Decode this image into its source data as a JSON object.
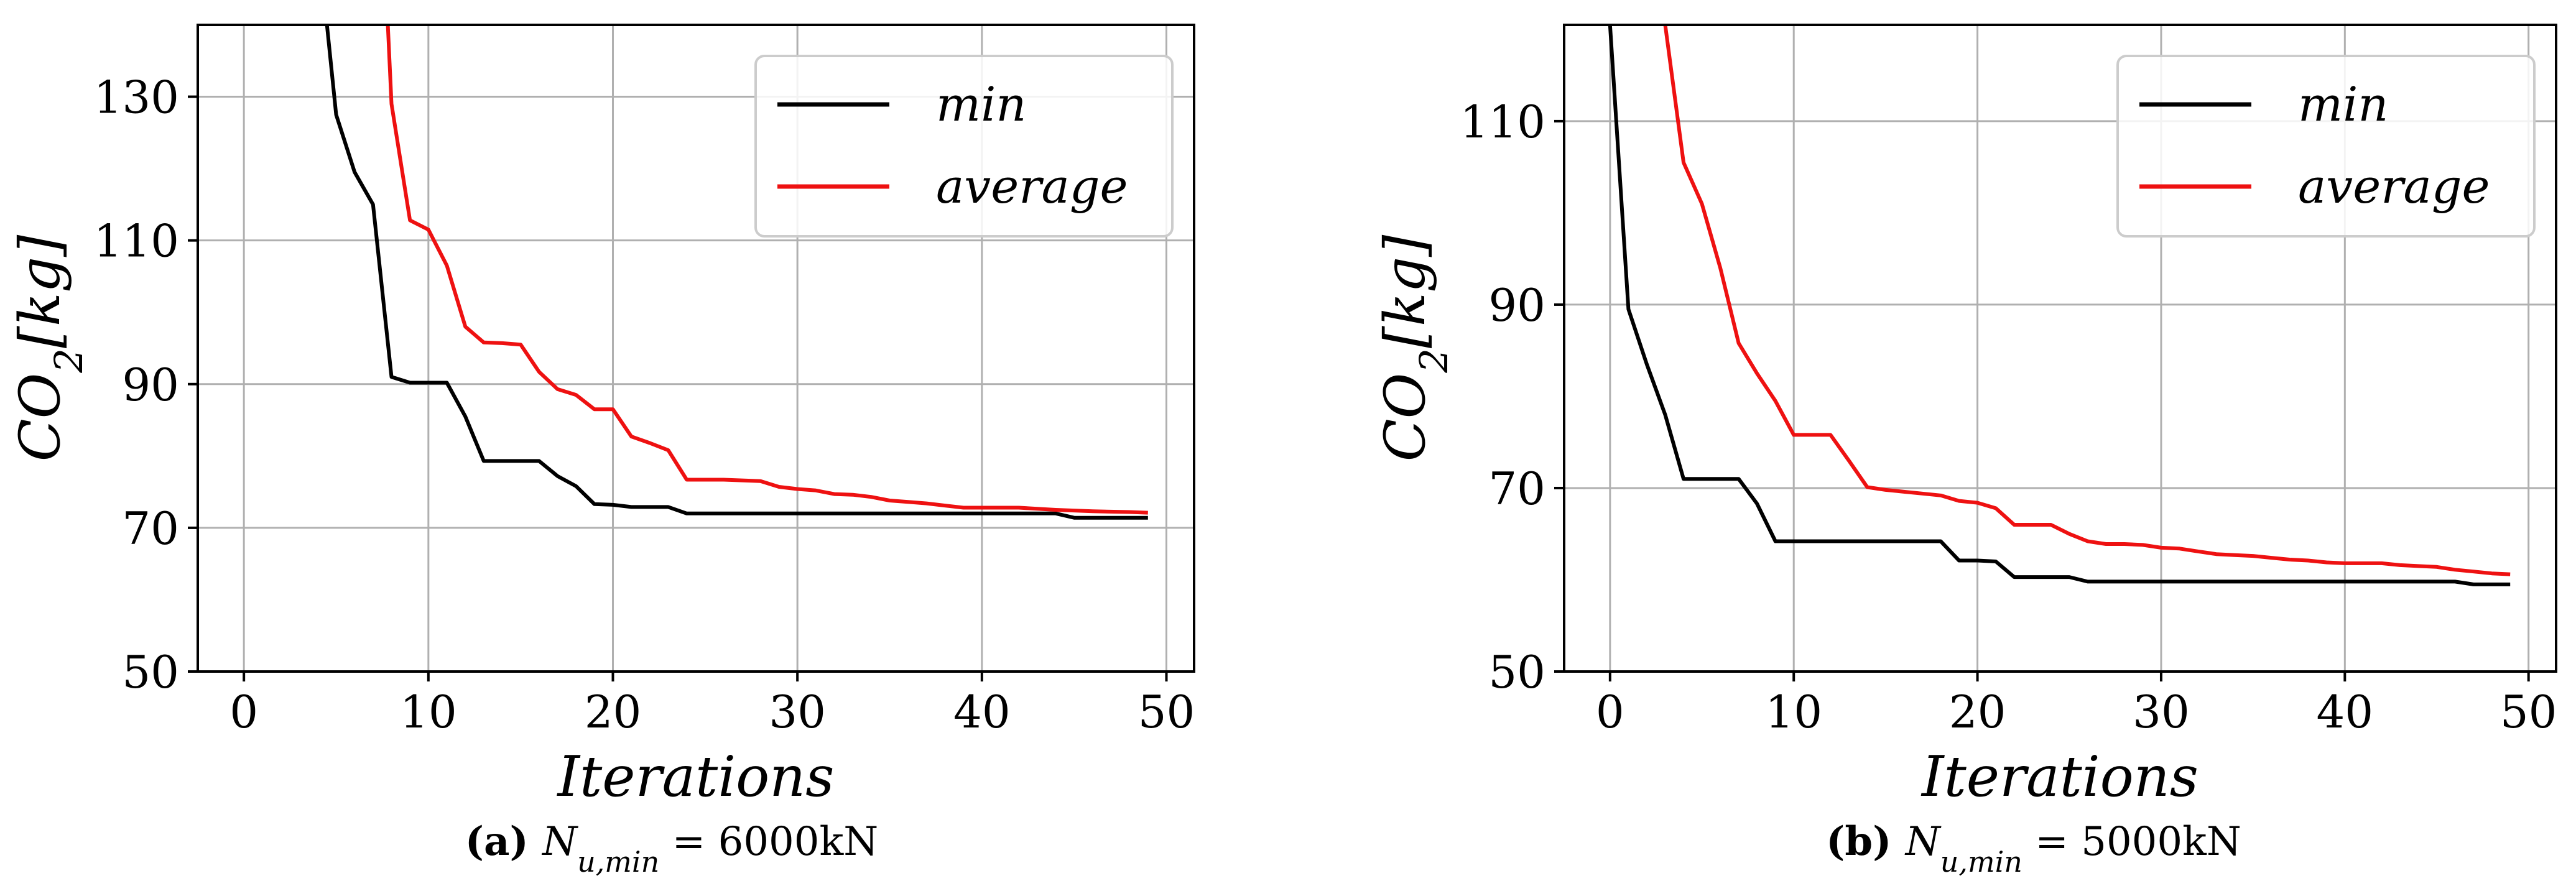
{
  "chart_data": [
    {
      "type": "line",
      "panel": "a",
      "caption": {
        "letter": "(a)",
        "var": "N",
        "sub": "u,min",
        "value": "= 6000kN"
      },
      "xlabel": "Iterations",
      "ylabel": "CO",
      "ylabel_sub": "2",
      "ylabel_unit": "[kg]",
      "xlim": [
        -2.5,
        51.5
      ],
      "ylim": [
        50,
        140
      ],
      "xticks": [
        0,
        10,
        20,
        30,
        40,
        50
      ],
      "yticks": [
        50,
        70,
        90,
        110,
        130
      ],
      "grid": true,
      "legend_position": "top-right",
      "series": [
        {
          "name": "min",
          "color": "#000000",
          "x": [
            4.5,
            5,
            6,
            7,
            8,
            9,
            10,
            11,
            12,
            13,
            14,
            15,
            16,
            17,
            18,
            19,
            20,
            21,
            22,
            23,
            24,
            25,
            30,
            35,
            40,
            44,
            45,
            49
          ],
          "y": [
            140,
            127.5,
            119.5,
            115,
            91,
            90.2,
            90.2,
            90.2,
            85.5,
            79.3,
            79.3,
            79.3,
            79.3,
            77.2,
            75.8,
            73.3,
            73.2,
            72.9,
            72.9,
            72.9,
            72,
            72,
            72,
            72,
            72,
            72,
            71.4,
            71.4
          ]
        },
        {
          "name": "average",
          "color": "#ee1111",
          "x": [
            7.8,
            8,
            9,
            10,
            11,
            12,
            13,
            14,
            15,
            16,
            17,
            18,
            19,
            20,
            21,
            22,
            23,
            24,
            25,
            26,
            27,
            28,
            29,
            30,
            31,
            32,
            33,
            34,
            35,
            36,
            37,
            38,
            39,
            40,
            42,
            44,
            46,
            48,
            49
          ],
          "y": [
            140,
            129,
            112.8,
            111.5,
            106.5,
            98,
            95.8,
            95.7,
            95.5,
            91.7,
            89.3,
            88.5,
            86.5,
            86.5,
            82.7,
            81.8,
            80.8,
            76.7,
            76.7,
            76.7,
            76.6,
            76.5,
            75.7,
            75.4,
            75.2,
            74.7,
            74.6,
            74.3,
            73.8,
            73.6,
            73.4,
            73.1,
            72.8,
            72.8,
            72.8,
            72.5,
            72.3,
            72.2,
            72.1
          ]
        }
      ]
    },
    {
      "type": "line",
      "panel": "b",
      "caption": {
        "letter": "(b)",
        "var": "N",
        "sub": "u,min",
        "value": "= 5000kN"
      },
      "xlabel": "Iterations",
      "ylabel": "CO",
      "ylabel_sub": "2",
      "ylabel_unit": "[kg]",
      "xlim": [
        -2.5,
        51.5
      ],
      "ylim": [
        50,
        120.5
      ],
      "xticks": [
        0,
        10,
        20,
        30,
        40,
        50
      ],
      "yticks": [
        50,
        70,
        90,
        110
      ],
      "grid": true,
      "legend_position": "top-right",
      "series": [
        {
          "name": "min",
          "color": "#000000",
          "x": [
            0,
            1,
            2,
            3,
            4,
            5,
            6,
            7,
            8,
            9,
            10,
            15,
            18,
            19,
            20,
            21,
            22,
            23,
            24,
            25,
            26,
            30,
            35,
            40,
            45,
            46,
            47,
            48,
            49
          ],
          "y": [
            120.5,
            89.5,
            83.5,
            78,
            71,
            71,
            71,
            71,
            68.3,
            64.2,
            64.2,
            64.2,
            64.2,
            62.1,
            62.1,
            62,
            60.3,
            60.3,
            60.3,
            60.3,
            59.8,
            59.8,
            59.8,
            59.8,
            59.8,
            59.8,
            59.5,
            59.5,
            59.5
          ]
        },
        {
          "name": "average",
          "color": "#ee1111",
          "x": [
            3,
            4,
            5,
            6,
            7,
            8,
            9,
            10,
            11,
            12,
            13,
            14,
            15,
            16,
            17,
            18,
            19,
            20,
            21,
            22,
            23,
            24,
            25,
            26,
            27,
            28,
            29,
            30,
            31,
            32,
            33,
            34,
            35,
            36,
            37,
            38,
            39,
            40,
            41,
            42,
            43,
            44,
            45,
            46,
            47,
            48,
            49
          ],
          "y": [
            120.5,
            105.5,
            101,
            94,
            85.8,
            82.5,
            79.5,
            75.8,
            75.8,
            75.8,
            73,
            70.1,
            69.8,
            69.6,
            69.4,
            69.2,
            68.6,
            68.4,
            67.8,
            66,
            66,
            66,
            65,
            64.2,
            63.9,
            63.9,
            63.8,
            63.5,
            63.4,
            63.1,
            62.8,
            62.7,
            62.6,
            62.4,
            62.2,
            62.1,
            61.9,
            61.8,
            61.8,
            61.8,
            61.6,
            61.5,
            61.4,
            61.1,
            60.9,
            60.7,
            60.6
          ]
        }
      ]
    }
  ]
}
